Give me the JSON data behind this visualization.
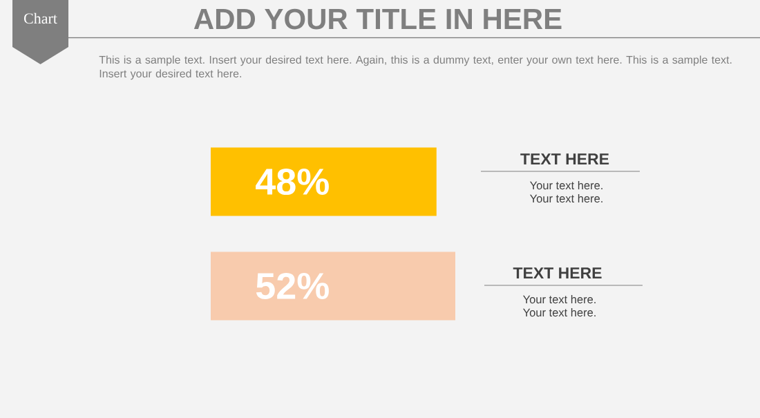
{
  "chart_data": {
    "type": "bar",
    "orientation": "horizontal",
    "title": "ADD YOUR TITLE IN HERE",
    "subtitle": "This is a sample text. Insert your desired text here. Again, this is a dummy text, enter your own text here. This is a sample text. Insert your desired text here.",
    "categories": [
      null,
      null
    ],
    "values": [
      48,
      52
    ],
    "colors": [
      "#ffc000",
      "#f8cbad"
    ],
    "value_labels": [
      "48%",
      "52%"
    ],
    "tick_labels": false,
    "annotations": [
      "Chart",
      "TEXT HERE",
      "Your text here.",
      "Your text here.",
      "TEXT HERE",
      "Your text here.",
      "Your text here."
    ]
  }
}
